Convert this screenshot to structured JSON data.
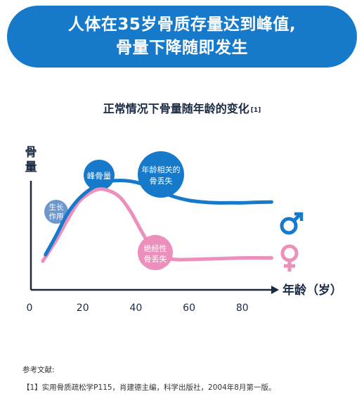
{
  "header": {
    "line1": "人体在35岁骨质存量达到峰值,",
    "line2": "骨量下降随即发生"
  },
  "chart_data": {
    "type": "line",
    "title": "正常情况下骨量随年龄的变化",
    "title_ref": "[1]",
    "ylabel": "骨量",
    "xlabel": "年龄（岁）",
    "xlim": [
      0,
      100
    ],
    "xticks": [
      "0",
      "20",
      "40",
      "60",
      "80"
    ],
    "series": [
      {
        "name": "♂",
        "color": "#1779c9",
        "x": [
          6,
          10,
          14,
          18,
          22,
          26,
          30,
          34,
          38,
          42,
          46,
          50,
          55,
          60,
          65,
          70,
          75,
          80,
          85,
          91
        ],
        "y": [
          0.22,
          0.34,
          0.47,
          0.56,
          0.62,
          0.66,
          0.68,
          0.685,
          0.68,
          0.665,
          0.64,
          0.61,
          0.58,
          0.56,
          0.55,
          0.545,
          0.545,
          0.545,
          0.548,
          0.55
        ]
      },
      {
        "name": "♀",
        "color": "#ec8fba",
        "x": [
          5,
          10,
          14,
          18,
          22,
          26,
          30,
          34,
          38,
          42,
          46,
          50,
          55,
          60,
          70,
          80,
          91
        ],
        "y": [
          0.18,
          0.31,
          0.43,
          0.54,
          0.6,
          0.63,
          0.62,
          0.58,
          0.49,
          0.37,
          0.26,
          0.205,
          0.19,
          0.19,
          0.195,
          0.2,
          0.2
        ]
      }
    ],
    "annotations": [
      {
        "text": [
          "生长",
          "作用"
        ],
        "color": "#6e97cc"
      },
      {
        "text": [
          "峰骨量"
        ],
        "color": "#1779c9"
      },
      {
        "text": [
          "年龄相关的",
          "骨丢失"
        ],
        "color": "#1779c9"
      },
      {
        "text": [
          "绝经性",
          "骨丢失"
        ],
        "color": "#ec8fba"
      }
    ]
  },
  "references": {
    "heading": "参考文献:",
    "items": [
      "【1】实用骨质疏松学P115，肖建德主编，科学出版社，2004年8月第一版。"
    ]
  }
}
